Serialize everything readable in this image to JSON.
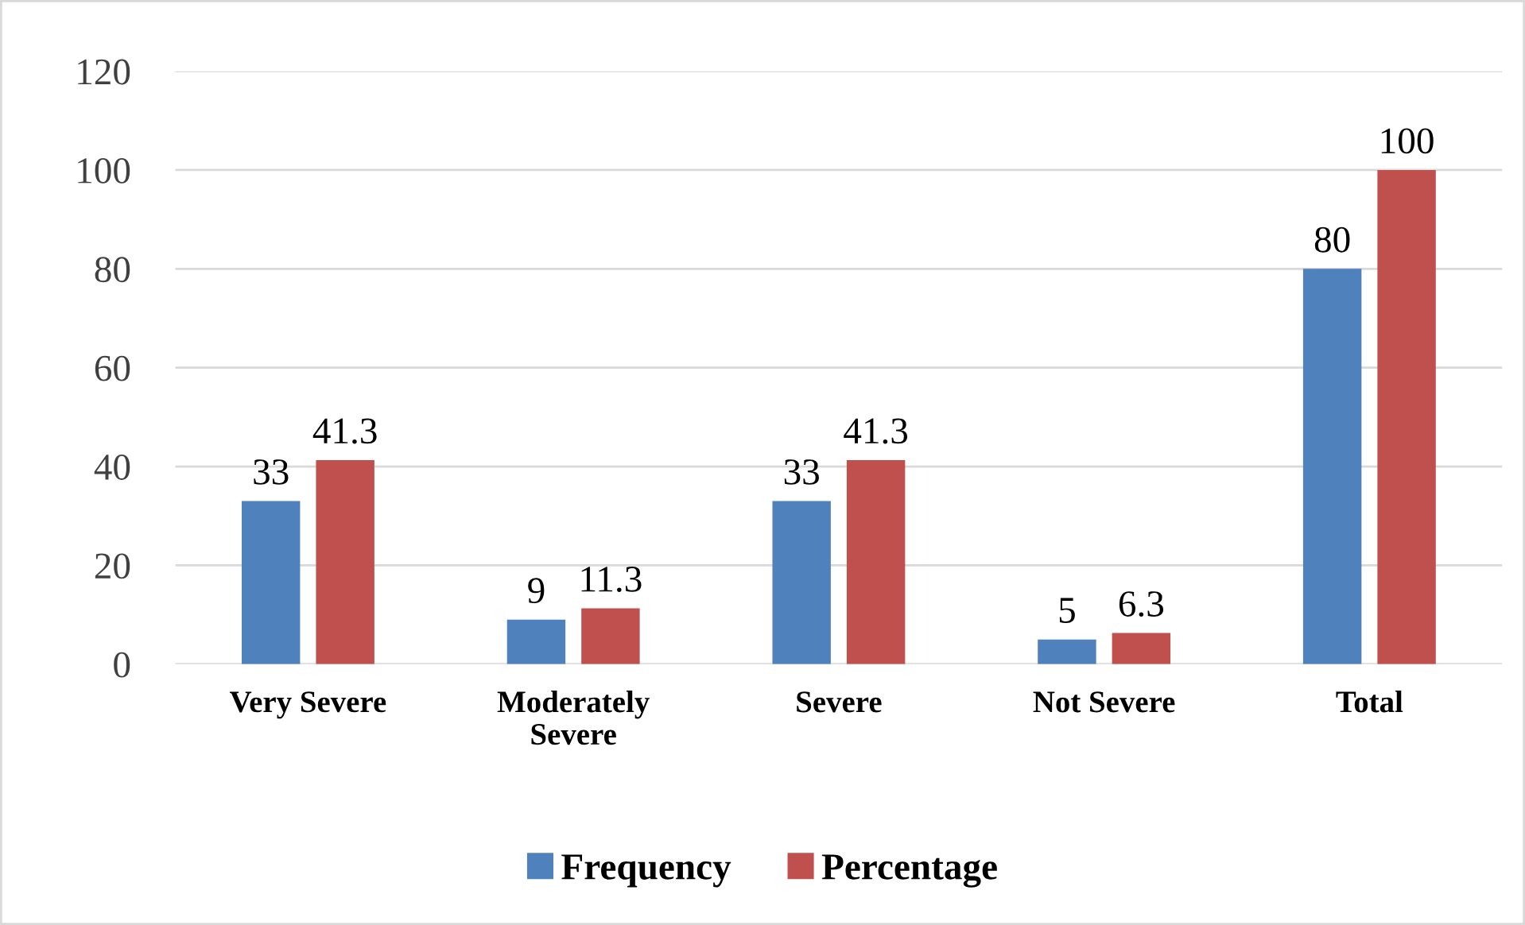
{
  "chart_data": {
    "type": "bar",
    "categories": [
      "Very Severe",
      "Moderately Severe",
      "Severe",
      "Not Severe",
      "Total"
    ],
    "series": [
      {
        "name": "Frequency",
        "color": "#4f81bd",
        "values": [
          33,
          9,
          33,
          5,
          80
        ]
      },
      {
        "name": "Percentage",
        "color": "#c0504d",
        "values": [
          41.3,
          11.3,
          41.3,
          6.3,
          100
        ]
      }
    ],
    "ylim": [
      0,
      120
    ],
    "yticks": [
      0,
      20,
      40,
      60,
      80,
      100,
      120
    ],
    "grid": "y",
    "legend": "bottom",
    "data_labels": true
  }
}
